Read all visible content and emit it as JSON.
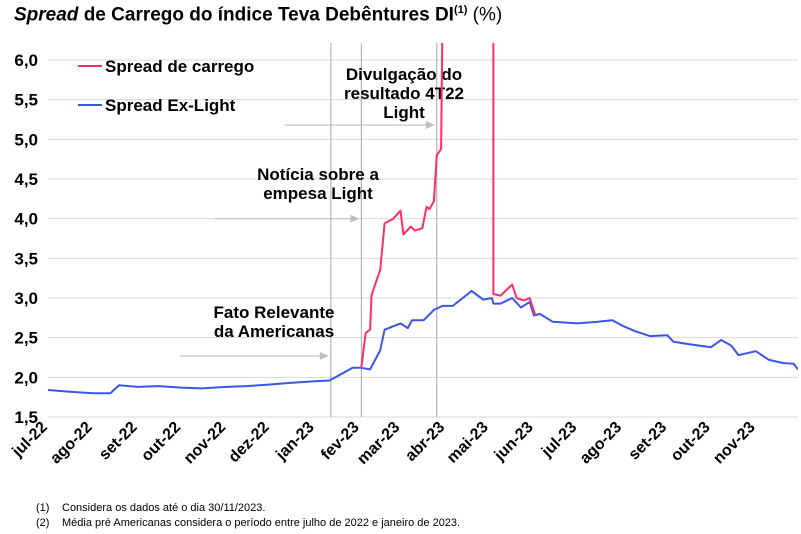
{
  "title": {
    "italic": "Spread",
    "main": " de Carrego do índice Teva Debêntures DI",
    "sup": "(1)",
    "unit": " (%)"
  },
  "footnotes": [
    {
      "num": "(1)",
      "text": "Considera os dados até o dia 30/11/2023."
    },
    {
      "num": "(2)",
      "text": "Média pré Americanas considera o período entre julho de 2022 e janeiro de 2023."
    }
  ],
  "chart_data": {
    "type": "line",
    "title": "Spread de Carrego do índice Teva Debêntures DI (%)",
    "ylim": [
      1.5,
      6.0
    ],
    "yticks": [
      "1,5",
      "2,0",
      "2,5",
      "3,0",
      "3,5",
      "4,0",
      "4,5",
      "5,0",
      "5,5",
      "6,0"
    ],
    "xlim": [
      "2022-07-01",
      "2023-11-30"
    ],
    "xticks": [
      {
        "date": "2022-07-01",
        "label": "jul-22"
      },
      {
        "date": "2022-08-01",
        "label": "ago-22"
      },
      {
        "date": "2022-09-01",
        "label": "set-22"
      },
      {
        "date": "2022-10-01",
        "label": "out-22"
      },
      {
        "date": "2022-11-01",
        "label": "nov-22"
      },
      {
        "date": "2022-12-01",
        "label": "dez-22"
      },
      {
        "date": "2023-01-01",
        "label": "jan-23"
      },
      {
        "date": "2023-02-01",
        "label": "fev-23"
      },
      {
        "date": "2023-03-01",
        "label": "mar-23"
      },
      {
        "date": "2023-04-01",
        "label": "abr-23"
      },
      {
        "date": "2023-05-01",
        "label": "mai-23"
      },
      {
        "date": "2023-06-01",
        "label": "jun-23"
      },
      {
        "date": "2023-07-01",
        "label": "jul-23"
      },
      {
        "date": "2023-08-01",
        "label": "ago-23"
      },
      {
        "date": "2023-09-01",
        "label": "set-23"
      },
      {
        "date": "2023-10-01",
        "label": "out-23"
      },
      {
        "date": "2023-11-01",
        "label": "nov-23"
      }
    ],
    "grid": true,
    "legend_position": "top-left",
    "series": [
      {
        "name": "Spread de carrego",
        "color": "#FF2D6A",
        "points": [
          [
            "2023-02-02",
            2.12
          ],
          [
            "2023-02-05",
            2.56
          ],
          [
            "2023-02-08",
            2.6
          ],
          [
            "2023-02-09",
            3.03
          ],
          [
            "2023-02-12",
            3.2
          ],
          [
            "2023-02-15",
            3.35
          ],
          [
            "2023-02-18",
            3.94
          ],
          [
            "2023-02-24",
            4.0
          ],
          [
            "2023-03-01",
            4.1
          ],
          [
            "2023-03-03",
            3.8
          ],
          [
            "2023-03-08",
            3.9
          ],
          [
            "2023-03-11",
            3.85
          ],
          [
            "2023-03-16",
            3.88
          ],
          [
            "2023-03-19",
            4.15
          ],
          [
            "2023-03-21",
            4.12
          ],
          [
            "2023-03-24",
            4.22
          ],
          [
            "2023-03-26",
            4.8
          ],
          [
            "2023-03-29",
            4.88
          ],
          [
            "2023-04-01",
            10.0
          ],
          [
            "2023-05-04",
            10.0
          ],
          [
            "2023-05-04",
            3.05
          ],
          [
            "2023-05-09",
            3.03
          ],
          [
            "2023-05-17",
            3.17
          ],
          [
            "2023-05-20",
            3.0
          ],
          [
            "2023-05-25",
            2.97
          ],
          [
            "2023-05-29",
            3.0
          ],
          [
            "2023-06-02",
            2.78
          ]
        ]
      },
      {
        "name": "Spread Ex-Light",
        "color": "#3B55E6",
        "points": [
          [
            "2022-07-01",
            1.84
          ],
          [
            "2022-07-15",
            1.82
          ],
          [
            "2022-08-01",
            1.8
          ],
          [
            "2022-08-13",
            1.8
          ],
          [
            "2022-08-19",
            1.9
          ],
          [
            "2022-09-01",
            1.88
          ],
          [
            "2022-09-15",
            1.89
          ],
          [
            "2022-10-01",
            1.87
          ],
          [
            "2022-10-15",
            1.86
          ],
          [
            "2022-11-01",
            1.88
          ],
          [
            "2022-11-15",
            1.89
          ],
          [
            "2022-12-01",
            1.91
          ],
          [
            "2022-12-15",
            1.93
          ],
          [
            "2023-01-01",
            1.95
          ],
          [
            "2023-01-11",
            1.96
          ],
          [
            "2023-01-20",
            2.05
          ],
          [
            "2023-01-27",
            2.12
          ],
          [
            "2023-02-02",
            2.12
          ],
          [
            "2023-02-08",
            2.1
          ],
          [
            "2023-02-15",
            2.34
          ],
          [
            "2023-02-18",
            2.6
          ],
          [
            "2023-03-01",
            2.68
          ],
          [
            "2023-03-06",
            2.62
          ],
          [
            "2023-03-09",
            2.72
          ],
          [
            "2023-03-17",
            2.72
          ],
          [
            "2023-03-24",
            2.85
          ],
          [
            "2023-03-30",
            2.9
          ],
          [
            "2023-04-06",
            2.9
          ],
          [
            "2023-04-15",
            3.03
          ],
          [
            "2023-04-19",
            3.09
          ],
          [
            "2023-04-27",
            2.98
          ],
          [
            "2023-05-03",
            3.0
          ],
          [
            "2023-05-04",
            2.93
          ],
          [
            "2023-05-09",
            2.93
          ],
          [
            "2023-05-17",
            3.0
          ],
          [
            "2023-05-23",
            2.88
          ],
          [
            "2023-05-29",
            2.95
          ],
          [
            "2023-06-01",
            2.78
          ],
          [
            "2023-06-05",
            2.8
          ],
          [
            "2023-06-14",
            2.7
          ],
          [
            "2023-07-01",
            2.68
          ],
          [
            "2023-07-15",
            2.7
          ],
          [
            "2023-07-25",
            2.72
          ],
          [
            "2023-08-01",
            2.65
          ],
          [
            "2023-08-10",
            2.58
          ],
          [
            "2023-08-20",
            2.52
          ],
          [
            "2023-09-01",
            2.53
          ],
          [
            "2023-09-05",
            2.45
          ],
          [
            "2023-09-15",
            2.42
          ],
          [
            "2023-10-01",
            2.38
          ],
          [
            "2023-10-08",
            2.47
          ],
          [
            "2023-10-15",
            2.4
          ],
          [
            "2023-10-20",
            2.28
          ],
          [
            "2023-11-01",
            2.33
          ],
          [
            "2023-11-10",
            2.22
          ],
          [
            "2023-11-20",
            2.18
          ],
          [
            "2023-11-27",
            2.17
          ],
          [
            "2023-11-30",
            2.1
          ]
        ]
      }
    ],
    "events": [
      {
        "date": "2023-01-12",
        "label_lines": [
          "Fato Relevante",
          "da Americanas"
        ],
        "arrow_value": 2.27
      },
      {
        "date": "2023-02-02",
        "label_lines": [
          "Notícia sobre a",
          "empesa Light"
        ],
        "arrow_value": 4.0
      },
      {
        "date": "2023-03-26",
        "label_lines": [
          "Divulgação do",
          "resultado 4T22",
          "Light"
        ],
        "arrow_value": 5.18
      }
    ]
  }
}
